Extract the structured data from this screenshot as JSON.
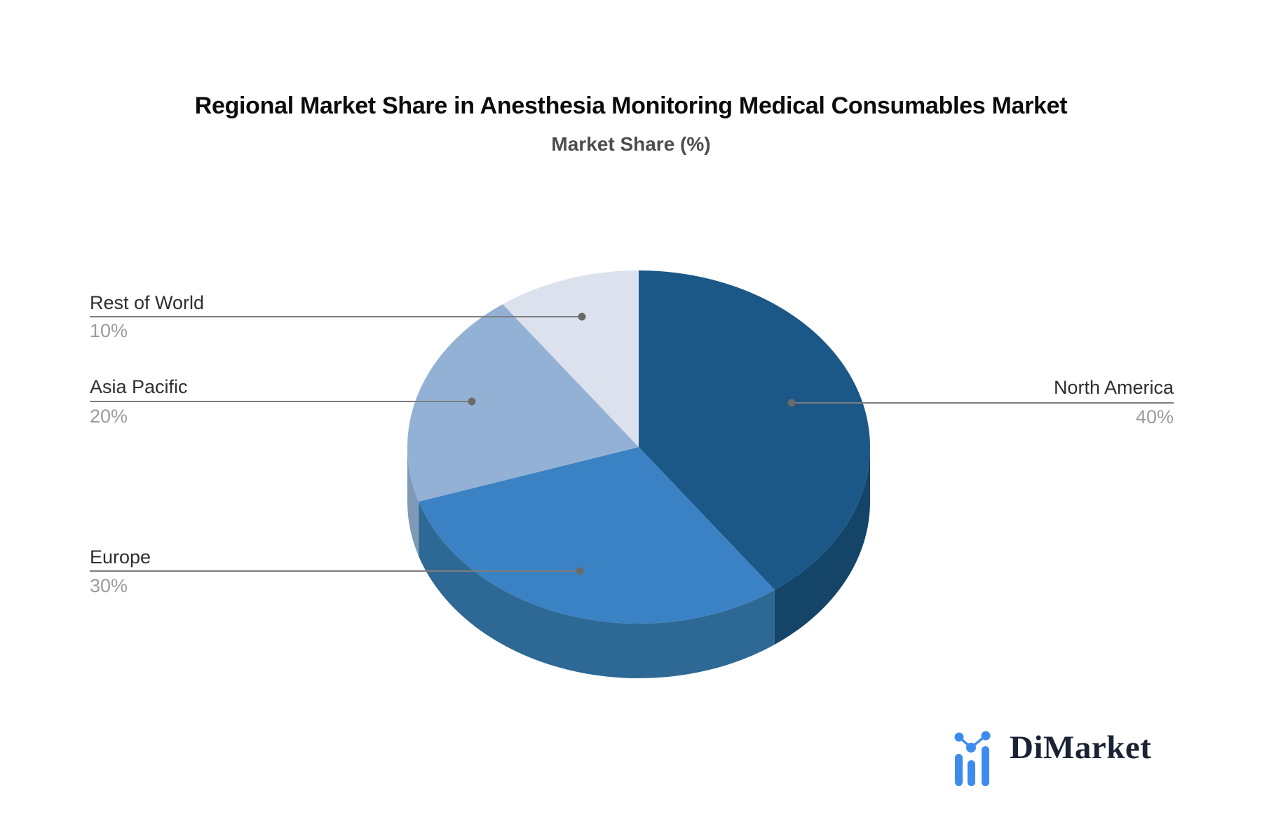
{
  "title": "Regional Market Share in Anesthesia Monitoring Medical Consumables Market",
  "subtitle": "Market Share (%)",
  "chart_data": {
    "type": "pie",
    "title": "Regional Market Share in Anesthesia Monitoring Medical Consumables Market",
    "subtitle": "Market Share (%)",
    "categories": [
      "North America",
      "Europe",
      "Asia Pacific",
      "Rest of World"
    ],
    "values": [
      40,
      30,
      20,
      10
    ],
    "unit": "%",
    "labels": [
      {
        "name": "North America",
        "value_label": "40%",
        "side": "right"
      },
      {
        "name": "Europe",
        "value_label": "30%",
        "side": "left"
      },
      {
        "name": "Asia Pacific",
        "value_label": "20%",
        "side": "left"
      },
      {
        "name": "Rest of World",
        "value_label": "10%",
        "side": "left"
      }
    ],
    "colors": [
      "#1b5888",
      "#3a82c4",
      "#93b1d5",
      "#dbe2ed"
    ],
    "side_colors": [
      "#144467",
      "#2e6995",
      "#7e9ab8",
      "#b9c4d6"
    ],
    "leader_line_color": "#7c7c7c",
    "leader_dot_color": "#6a6a6a",
    "style": "3d-pie",
    "start_angle_deg": 0,
    "direction": "clockwise",
    "legend_position": "none"
  },
  "logo": {
    "text": "DiMarket",
    "icon": "bar-chart-trend-icon",
    "text_color": "#1a2334",
    "icon_color": "#3e8bef"
  }
}
